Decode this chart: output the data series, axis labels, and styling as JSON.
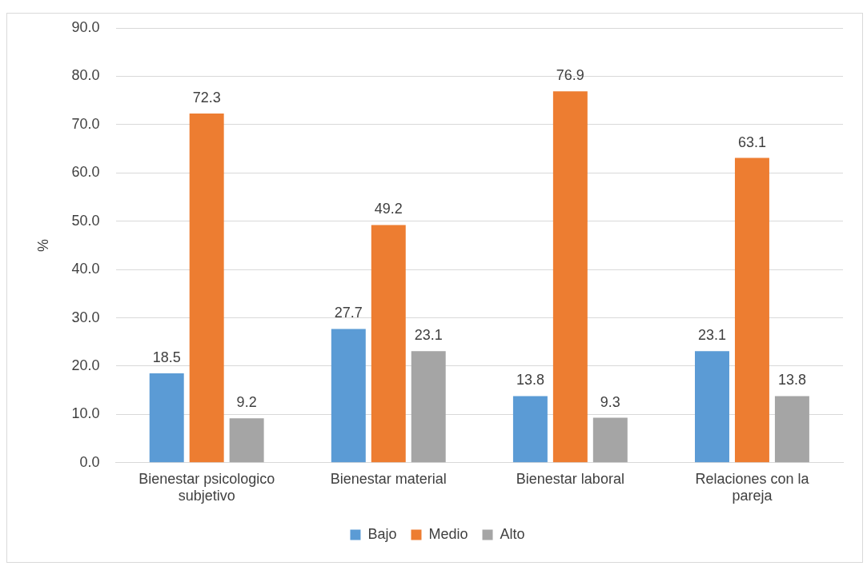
{
  "chart_data": {
    "type": "bar",
    "ylabel": "%",
    "categories": [
      "Bienestar psicologico subjetivo",
      "Bienestar material",
      "Bienestar laboral",
      "Relaciones con la pareja"
    ],
    "series": [
      {
        "name": "Bajo",
        "color": "#5b9bd5",
        "values": [
          18.5,
          27.7,
          13.8,
          23.1
        ]
      },
      {
        "name": "Medio",
        "color": "#ed7d31",
        "values": [
          72.3,
          49.2,
          76.9,
          63.1
        ]
      },
      {
        "name": "Alto",
        "color": "#a5a5a5",
        "values": [
          9.2,
          23.1,
          9.3,
          13.8
        ]
      }
    ],
    "ylim": [
      0,
      90
    ],
    "yticks": [
      {
        "value": 0,
        "label": "0.0"
      },
      {
        "value": 10,
        "label": "10.0"
      },
      {
        "value": 20,
        "label": "20.0"
      },
      {
        "value": 30,
        "label": "30.0"
      },
      {
        "value": 40,
        "label": "40.0"
      },
      {
        "value": 50,
        "label": "50.0"
      },
      {
        "value": 60,
        "label": "60.0"
      },
      {
        "value": 70,
        "label": "70.0"
      },
      {
        "value": 80,
        "label": "80.0"
      },
      {
        "value": 90,
        "label": "90.0"
      }
    ],
    "grid": "y",
    "legend": "bottom",
    "data_labels": true
  }
}
